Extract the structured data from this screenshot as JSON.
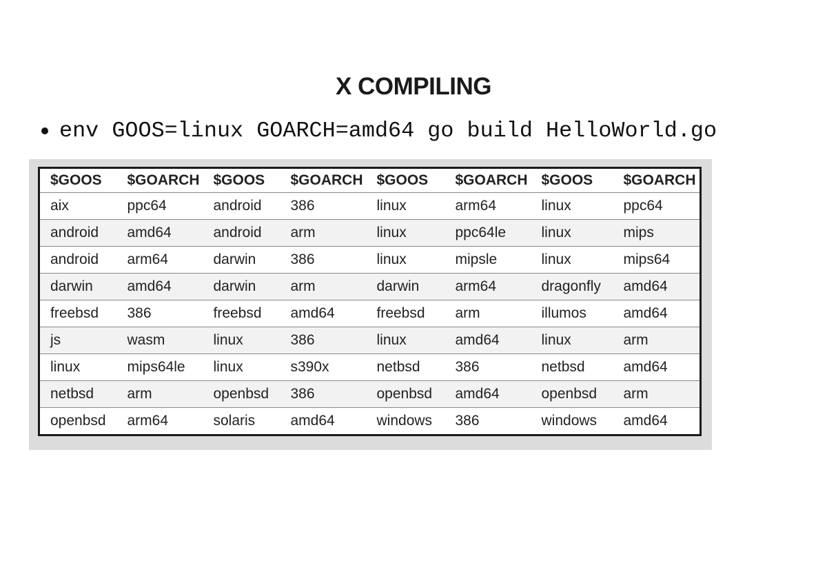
{
  "title": "X COMPILING",
  "bullet": "env GOOS=linux GOARCH=amd64 go build HelloWorld.go",
  "table": {
    "headers": [
      "$GOOS",
      "$GOARCH",
      "$GOOS",
      "$GOARCH",
      "$GOOS",
      "$GOARCH",
      "$GOOS",
      "$GOARCH"
    ],
    "rows": [
      [
        "aix",
        "ppc64",
        "android",
        "386",
        "linux",
        "arm64",
        "linux",
        "ppc64"
      ],
      [
        "android",
        "amd64",
        "android",
        "arm",
        "linux",
        "ppc64le",
        "linux",
        "mips"
      ],
      [
        "android",
        "arm64",
        "darwin",
        "386",
        "linux",
        "mipsle",
        "linux",
        "mips64"
      ],
      [
        "darwin",
        "amd64",
        "darwin",
        "arm",
        "darwin",
        "arm64",
        "dragonfly",
        "amd64"
      ],
      [
        "freebsd",
        "386",
        "freebsd",
        "amd64",
        "freebsd",
        "arm",
        "illumos",
        "amd64"
      ],
      [
        "js",
        "wasm",
        "linux",
        "386",
        "linux",
        "amd64",
        "linux",
        "arm"
      ],
      [
        "linux",
        "mips64le",
        "linux",
        "s390x",
        "netbsd",
        "386",
        "netbsd",
        "amd64"
      ],
      [
        "netbsd",
        "arm",
        "openbsd",
        "386",
        "openbsd",
        "amd64",
        "openbsd",
        "arm"
      ],
      [
        "openbsd",
        "arm64",
        "solaris",
        "amd64",
        "windows",
        "386",
        "windows",
        "amd64"
      ]
    ]
  }
}
